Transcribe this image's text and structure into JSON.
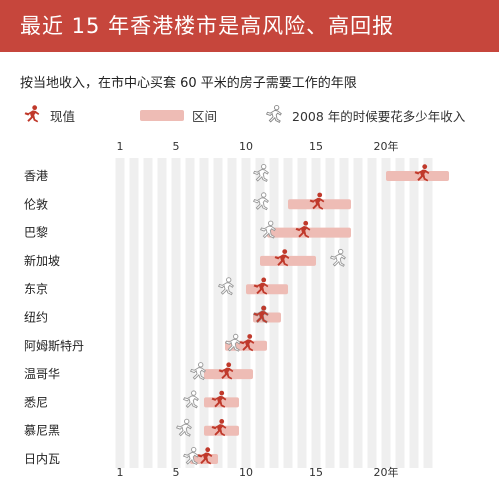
{
  "title": "最近 15 年香港楼市是高风险、高回报",
  "subtitle": "按当地收入，在市中心买套 60 平米的房子需要工作的年限",
  "legend": {
    "current": "现值",
    "range": "区间",
    "year2008": "2008 年的时候要花多少年收入"
  },
  "colors": {
    "header_bg": "#c6463c",
    "current": "#c0392b",
    "range": "#eebcb5",
    "past": "#999999",
    "stripe": "#efefef"
  },
  "chart_data": {
    "type": "range-dot",
    "x_ticks": [
      {
        "value": 1,
        "label": "1"
      },
      {
        "value": 5,
        "label": "5"
      },
      {
        "value": 10,
        "label": "10"
      },
      {
        "value": 15,
        "label": "15"
      },
      {
        "value": 20,
        "label": "20年"
      }
    ],
    "xlim": [
      1,
      23
    ],
    "cities": [
      {
        "name": "香港",
        "current": 22.5,
        "y2008": 11.0,
        "range": [
          20.0,
          24.5
        ]
      },
      {
        "name": "伦敦",
        "current": 15.0,
        "y2008": 11.0,
        "range": [
          13.0,
          17.5
        ]
      },
      {
        "name": "巴黎",
        "current": 14.0,
        "y2008": 11.5,
        "range": [
          11.5,
          17.5
        ]
      },
      {
        "name": "新加坡",
        "current": 12.5,
        "y2008": 16.5,
        "range": [
          11.0,
          15.0
        ]
      },
      {
        "name": "东京",
        "current": 11.0,
        "y2008": 8.5,
        "range": [
          10.0,
          13.0
        ]
      },
      {
        "name": "纽约",
        "current": 11.0,
        "y2008": 11.0,
        "range": [
          10.5,
          12.5
        ]
      },
      {
        "name": "阿姆斯特丹",
        "current": 10.0,
        "y2008": 9.0,
        "range": [
          8.5,
          11.5
        ]
      },
      {
        "name": "温哥华",
        "current": 8.5,
        "y2008": 6.5,
        "range": [
          7.0,
          10.5
        ]
      },
      {
        "name": "悉尼",
        "current": 8.0,
        "y2008": 6.0,
        "range": [
          7.0,
          9.5
        ]
      },
      {
        "name": "慕尼黑",
        "current": 8.0,
        "y2008": 5.5,
        "range": [
          7.0,
          9.5
        ]
      },
      {
        "name": "日内瓦",
        "current": 7.0,
        "y2008": 6.0,
        "range": [
          6.0,
          8.0
        ]
      }
    ]
  }
}
